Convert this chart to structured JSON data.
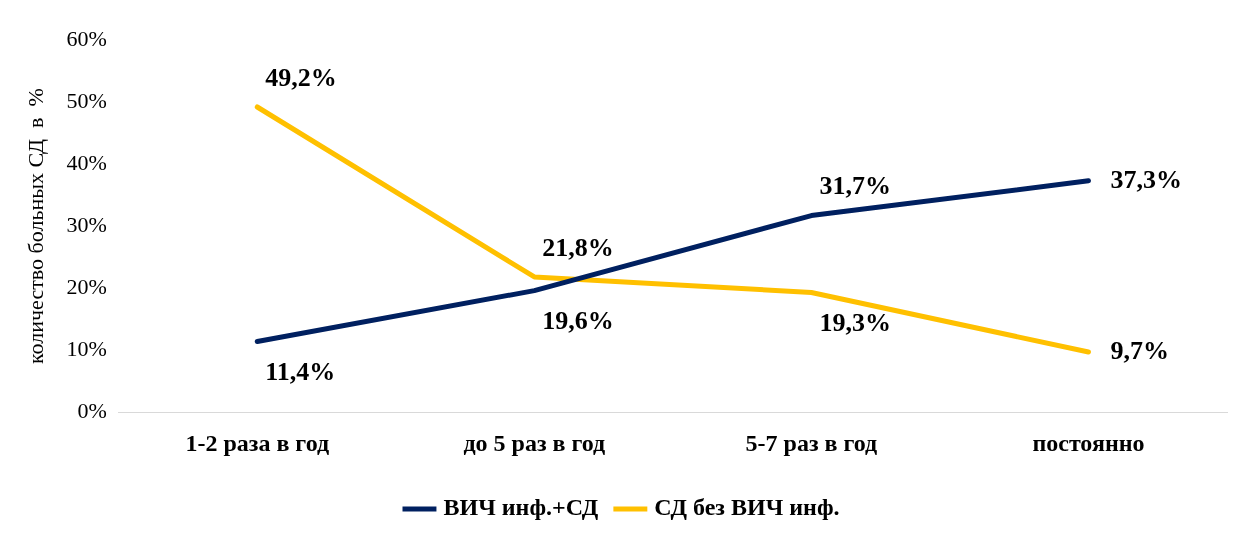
{
  "chart_data": {
    "type": "line",
    "ylabel": "количество больных СД  в  %",
    "categories": [
      "1-2 раза в год",
      "до 5 раз в год",
      "5-7 раз в год",
      "постоянно"
    ],
    "series": [
      {
        "name": "ВИЧ инф.+СД",
        "color": "#002060",
        "values": [
          11.4,
          19.6,
          31.7,
          37.3
        ],
        "value_labels": [
          "11,4%",
          "19,6%",
          "31,7%",
          "37,3%"
        ]
      },
      {
        "name": "СД без ВИЧ инф.",
        "color": "#ffc000",
        "values": [
          49.2,
          21.8,
          19.3,
          9.7
        ],
        "value_labels": [
          "49,2%",
          "21,8%",
          "19,3%",
          "9,7%"
        ]
      }
    ],
    "ylim": [
      0,
      60
    ],
    "yticks": [
      {
        "value": 0,
        "label": "0%"
      },
      {
        "value": 10,
        "label": "10%"
      },
      {
        "value": 20,
        "label": "20%"
      },
      {
        "value": 30,
        "label": "30%"
      },
      {
        "value": 40,
        "label": "40%"
      },
      {
        "value": 50,
        "label": "50%"
      },
      {
        "value": 60,
        "label": "60%"
      }
    ],
    "grid": false,
    "legend": "bottom",
    "marker": "none",
    "line_style": "solid"
  }
}
